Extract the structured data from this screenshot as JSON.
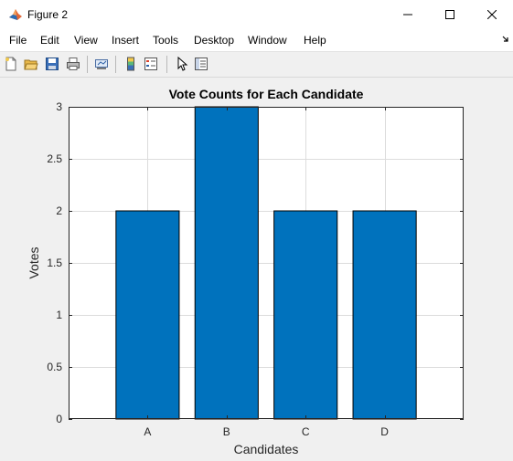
{
  "window": {
    "title": "Figure 2"
  },
  "icons": {
    "app": "matlab-logo-icon",
    "minimize": "minimize-icon",
    "maximize": "maximize-icon",
    "close": "close-icon"
  },
  "menu": {
    "items": [
      "File",
      "Edit",
      "View",
      "Insert",
      "Tools",
      "Desktop",
      "Window",
      "Help"
    ]
  },
  "toolbar": {
    "buttons": [
      "new-figure-icon",
      "open-file-icon",
      "save-icon",
      "print-icon",
      "link-plot-icon",
      "insert-colorbar-icon",
      "insert-legend-icon",
      "edit-plot-icon",
      "property-inspector-icon"
    ]
  },
  "colors": {
    "bar": "#0072bd",
    "axes_background": "#ffffff",
    "figure_background": "#f0f0f0"
  },
  "chart_data": {
    "type": "bar",
    "title": "Vote Counts for Each Candidate",
    "xlabel": "Candidates",
    "ylabel": "Votes",
    "categories": [
      "A",
      "B",
      "C",
      "D"
    ],
    "values": [
      2,
      3,
      2,
      2
    ],
    "ylim": [
      0,
      3
    ],
    "xlim": [
      0,
      5
    ],
    "yticks": [
      0,
      0.5,
      1,
      1.5,
      2,
      2.5,
      3
    ],
    "yticklabels": [
      "0",
      "0.5",
      "1",
      "1.5",
      "2",
      "2.5",
      "3"
    ],
    "grid": true,
    "legend": "none"
  }
}
